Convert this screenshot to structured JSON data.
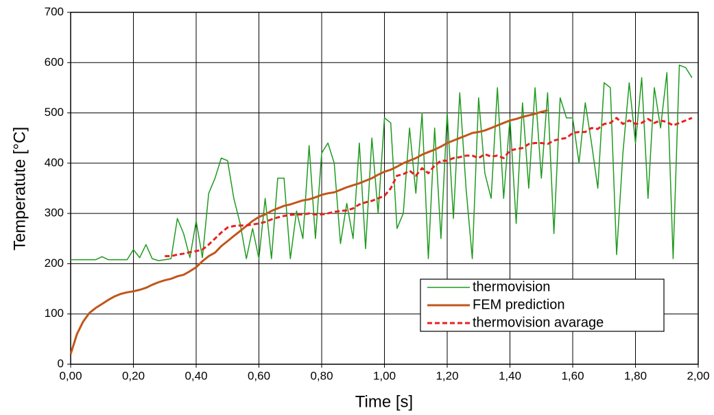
{
  "chart_data": {
    "type": "line",
    "xlabel": "Time [s]",
    "ylabel": "Temperatute [°C]",
    "x": [
      0,
      0.02,
      0.04,
      0.06,
      0.08,
      0.1,
      0.12,
      0.14,
      0.16,
      0.18,
      0.2,
      0.22,
      0.24,
      0.26,
      0.28,
      0.3,
      0.32,
      0.34,
      0.36,
      0.38,
      0.4,
      0.42,
      0.44,
      0.46,
      0.48,
      0.5,
      0.52,
      0.54,
      0.56,
      0.58,
      0.6,
      0.62,
      0.64,
      0.66,
      0.68,
      0.7,
      0.72,
      0.74,
      0.76,
      0.78,
      0.8,
      0.82,
      0.84,
      0.86,
      0.88,
      0.9,
      0.92,
      0.94,
      0.96,
      0.98,
      1,
      1.02,
      1.04,
      1.06,
      1.08,
      1.1,
      1.12,
      1.14,
      1.16,
      1.18,
      1.2,
      1.22,
      1.24,
      1.26,
      1.28,
      1.3,
      1.32,
      1.34,
      1.36,
      1.38,
      1.4,
      1.42,
      1.44,
      1.46,
      1.48,
      1.5,
      1.52,
      1.54,
      1.56,
      1.58,
      1.6,
      1.62,
      1.64,
      1.66,
      1.68,
      1.7,
      1.72,
      1.74,
      1.76,
      1.78,
      1.8,
      1.82,
      1.84,
      1.86,
      1.88,
      1.9,
      1.92,
      1.94,
      1.96,
      1.98
    ],
    "series": [
      {
        "name": "thermovision",
        "color": "#1e9a1e",
        "width": 1.5,
        "dashed": false,
        "values": [
          208,
          208,
          208,
          208,
          208,
          214,
          208,
          208,
          208,
          208,
          228,
          212,
          238,
          210,
          206,
          208,
          210,
          290,
          260,
          212,
          285,
          212,
          340,
          370,
          410,
          405,
          330,
          280,
          210,
          270,
          210,
          330,
          210,
          370,
          370,
          210,
          305,
          250,
          435,
          250,
          420,
          440,
          400,
          240,
          320,
          250,
          440,
          230,
          450,
          300,
          490,
          480,
          270,
          300,
          470,
          340,
          500,
          210,
          470,
          250,
          500,
          290,
          540,
          350,
          210,
          530,
          380,
          330,
          550,
          330,
          490,
          280,
          520,
          350,
          550,
          370,
          540,
          260,
          530,
          490,
          490,
          400,
          520,
          440,
          350,
          560,
          550,
          218,
          420,
          560,
          440,
          570,
          330,
          550,
          470,
          580,
          210,
          595,
          590,
          570
        ]
      },
      {
        "name": "FEM prediction",
        "color": "#c0561a",
        "width": 3,
        "dashed": false,
        "values": [
          20,
          60,
          85,
          102,
          112,
          120,
          128,
          135,
          140,
          143,
          145,
          148,
          152,
          158,
          163,
          167,
          170,
          175,
          178,
          185,
          193,
          205,
          215,
          222,
          235,
          245,
          255,
          265,
          275,
          285,
          293,
          298,
          305,
          310,
          315,
          318,
          322,
          326,
          328,
          332,
          337,
          340,
          342,
          347,
          352,
          356,
          360,
          365,
          370,
          377,
          383,
          387,
          393,
          400,
          405,
          410,
          417,
          422,
          427,
          433,
          440,
          445,
          450,
          455,
          460,
          462,
          465,
          470,
          475,
          480,
          485,
          488,
          492,
          495,
          498,
          502,
          505,
          null,
          null,
          null,
          null,
          null,
          null,
          null,
          null,
          null,
          null,
          null,
          null,
          null,
          null,
          null,
          null,
          null,
          null,
          null,
          null,
          null,
          null,
          null
        ]
      },
      {
        "name": "thermovision avarage",
        "color": "#e8201e",
        "width": 3,
        "dashed": true,
        "values": [
          null,
          null,
          null,
          null,
          null,
          null,
          null,
          null,
          null,
          null,
          null,
          null,
          null,
          null,
          null,
          215,
          215,
          218,
          220,
          223,
          225,
          228,
          238,
          250,
          262,
          272,
          275,
          276,
          276,
          278,
          280,
          283,
          288,
          292,
          295,
          297,
          298,
          298,
          300,
          298,
          298,
          300,
          303,
          305,
          306,
          310,
          318,
          322,
          325,
          330,
          335,
          350,
          375,
          378,
          385,
          375,
          390,
          380,
          395,
          405,
          405,
          410,
          412,
          415,
          415,
          410,
          418,
          413,
          415,
          410,
          425,
          428,
          430,
          438,
          440,
          440,
          438,
          445,
          448,
          450,
          460,
          462,
          462,
          470,
          468,
          478,
          480,
          490,
          478,
          485,
          478,
          480,
          488,
          480,
          485,
          482,
          475,
          480,
          485,
          490
        ]
      }
    ],
    "xlim": [
      0,
      2
    ],
    "ylim": [
      0,
      700
    ],
    "xticks": [
      {
        "value": 0,
        "label": "0,00"
      },
      {
        "value": 0.2,
        "label": "0,20"
      },
      {
        "value": 0.4,
        "label": "0,40"
      },
      {
        "value": 0.6,
        "label": "0,60"
      },
      {
        "value": 0.8,
        "label": "0,80"
      },
      {
        "value": 1,
        "label": "1,00"
      },
      {
        "value": 1.2,
        "label": "1,20"
      },
      {
        "value": 1.4,
        "label": "1,40"
      },
      {
        "value": 1.6,
        "label": "1,60"
      },
      {
        "value": 1.8,
        "label": "1,80"
      },
      {
        "value": 2,
        "label": "2,00"
      }
    ],
    "yticks": [
      0,
      100,
      200,
      300,
      400,
      500,
      600,
      700
    ],
    "grid": true,
    "legend": "lower right"
  }
}
